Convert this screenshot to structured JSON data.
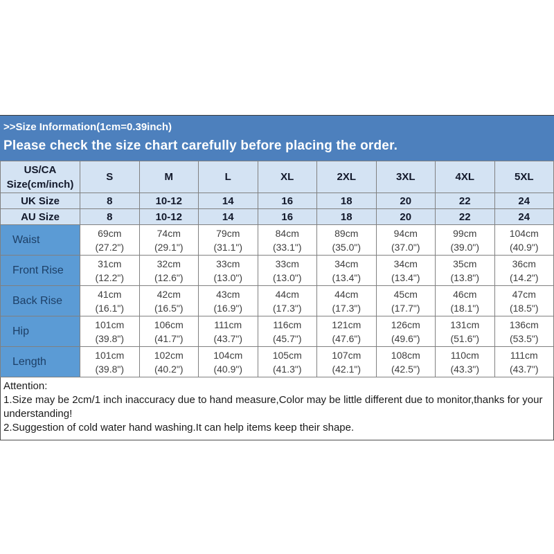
{
  "banner": {
    "line1": ">>Size Information(1cm=0.39inch)",
    "line2": "Please check the size chart carefully before placing the order."
  },
  "colors": {
    "banner_bg": "#4d80bd",
    "banner_text": "#ffffff",
    "header_cell_bg": "#d4e3f3",
    "label_column_bg": "#5b9bd5",
    "grid_border": "#808080",
    "outer_border": "#595959",
    "header_text": "#12182a",
    "data_text": "#3d3d3d"
  },
  "size_table": {
    "corner_line1": "US/CA",
    "corner_line2": "Size(cm/inch)",
    "columns": [
      "S",
      "M",
      "L",
      "XL",
      "2XL",
      "3XL",
      "4XL",
      "5XL"
    ],
    "size_rows": [
      {
        "label": "UK Size",
        "values": [
          "8",
          "10-12",
          "14",
          "16",
          "18",
          "20",
          "22",
          "24"
        ]
      },
      {
        "label": "AU Size",
        "values": [
          "8",
          "10-12",
          "14",
          "16",
          "18",
          "20",
          "22",
          "24"
        ]
      }
    ],
    "measurement_rows": [
      {
        "label": "Waist",
        "values": [
          [
            "69cm",
            "(27.2\")"
          ],
          [
            "74cm",
            "(29.1\")"
          ],
          [
            "79cm",
            "(31.1\")"
          ],
          [
            "84cm",
            "(33.1\")"
          ],
          [
            "89cm",
            "(35.0\")"
          ],
          [
            "94cm",
            "(37.0\")"
          ],
          [
            "99cm",
            "(39.0\")"
          ],
          [
            "104cm",
            "(40.9\")"
          ]
        ]
      },
      {
        "label": "Front Rise",
        "values": [
          [
            "31cm",
            "(12.2\")"
          ],
          [
            "32cm",
            "(12.6\")"
          ],
          [
            "33cm",
            "(13.0\")"
          ],
          [
            "33cm",
            "(13.0\")"
          ],
          [
            "34cm",
            "(13.4\")"
          ],
          [
            "34cm",
            "(13.4\")"
          ],
          [
            "35cm",
            "(13.8\")"
          ],
          [
            "36cm",
            "(14.2\")"
          ]
        ]
      },
      {
        "label": "Back Rise",
        "values": [
          [
            "41cm",
            "(16.1\")"
          ],
          [
            "42cm",
            "(16.5\")"
          ],
          [
            "43cm",
            "(16.9\")"
          ],
          [
            "44cm",
            "(17.3\")"
          ],
          [
            "44cm",
            "(17.3\")"
          ],
          [
            "45cm",
            "(17.7\")"
          ],
          [
            "46cm",
            "(18.1\")"
          ],
          [
            "47cm",
            "(18.5\")"
          ]
        ]
      },
      {
        "label": "Hip",
        "values": [
          [
            "101cm",
            "(39.8\")"
          ],
          [
            "106cm",
            "(41.7\")"
          ],
          [
            "111cm",
            "(43.7\")"
          ],
          [
            "116cm",
            "(45.7\")"
          ],
          [
            "121cm",
            "(47.6\")"
          ],
          [
            "126cm",
            "(49.6\")"
          ],
          [
            "131cm",
            "(51.6\")"
          ],
          [
            "136cm",
            "(53.5\")"
          ]
        ]
      },
      {
        "label": "Length",
        "values": [
          [
            "101cm",
            "(39.8\")"
          ],
          [
            "102cm",
            "(40.2\")"
          ],
          [
            "104cm",
            "(40.9\")"
          ],
          [
            "105cm",
            "(41.3\")"
          ],
          [
            "107cm",
            "(42.1\")"
          ],
          [
            "108cm",
            "(42.5\")"
          ],
          [
            "110cm",
            "(43.3\")"
          ],
          [
            "111cm",
            "(43.7\")"
          ]
        ]
      }
    ]
  },
  "attention": {
    "title": "Attention:",
    "note1": "1.Size may be 2cm/1 inch inaccuracy due to hand measure,Color may be little different due to monitor,thanks for your understanding!",
    "note2": "2.Suggestion of cold water hand washing.It can help items keep their shape."
  }
}
